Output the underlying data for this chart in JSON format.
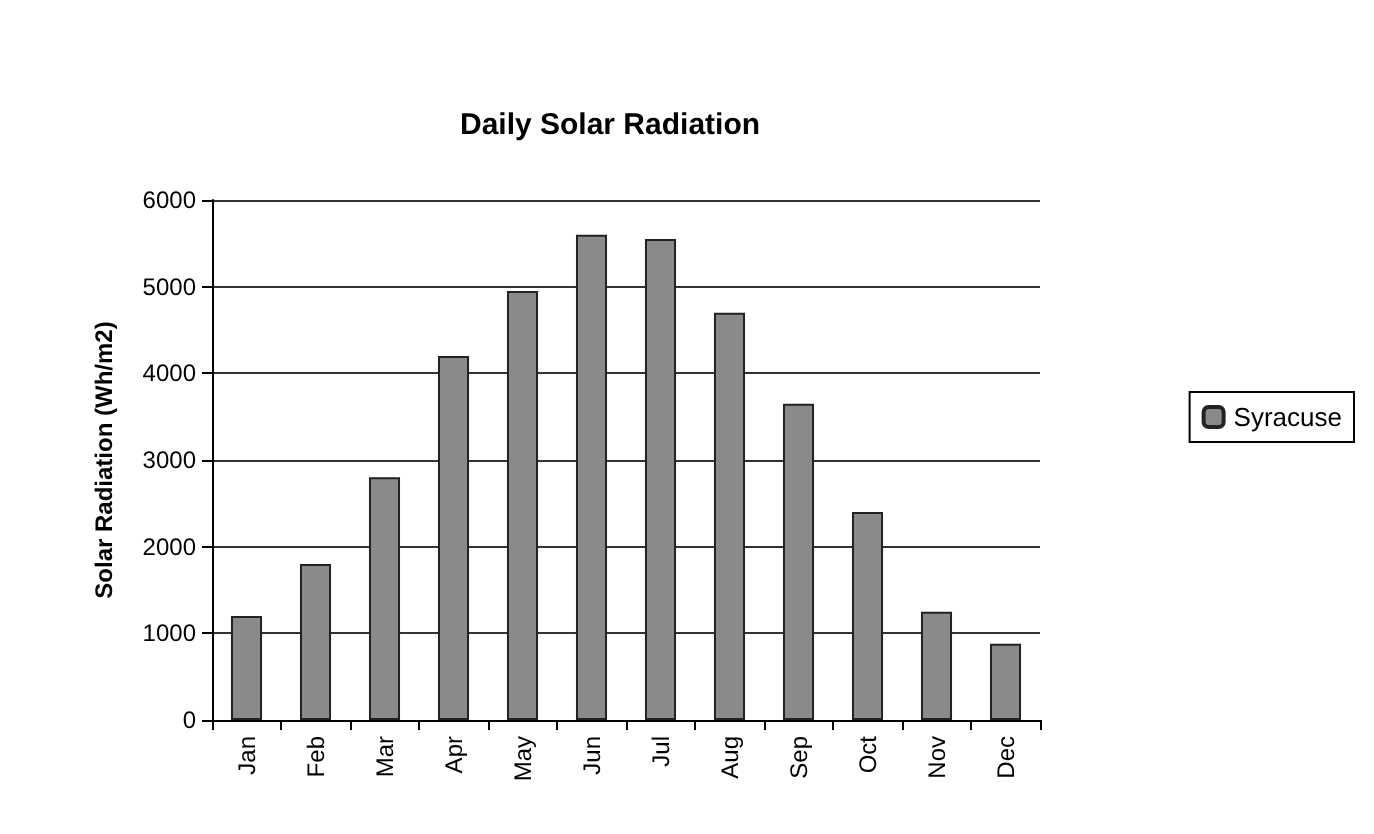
{
  "chart_data": {
    "type": "bar",
    "title": "Daily Solar Radiation",
    "ylabel": "Solar Radiation (Wh/m2)",
    "categories": [
      "Jan",
      "Feb",
      "Mar",
      "Apr",
      "May",
      "Jun",
      "Jul",
      "Aug",
      "Sep",
      "Oct",
      "Nov",
      "Dec"
    ],
    "series": [
      {
        "name": "Syracuse",
        "color": "#8a8a8a",
        "values": [
          1200,
          1800,
          2800,
          4200,
          4950,
          5600,
          5550,
          4700,
          3650,
          2400,
          1250,
          880
        ]
      }
    ],
    "ylim": [
      0,
      6000
    ],
    "yticks": [
      0,
      1000,
      2000,
      3000,
      4000,
      5000,
      6000
    ],
    "grid": "y",
    "legend": "right"
  }
}
